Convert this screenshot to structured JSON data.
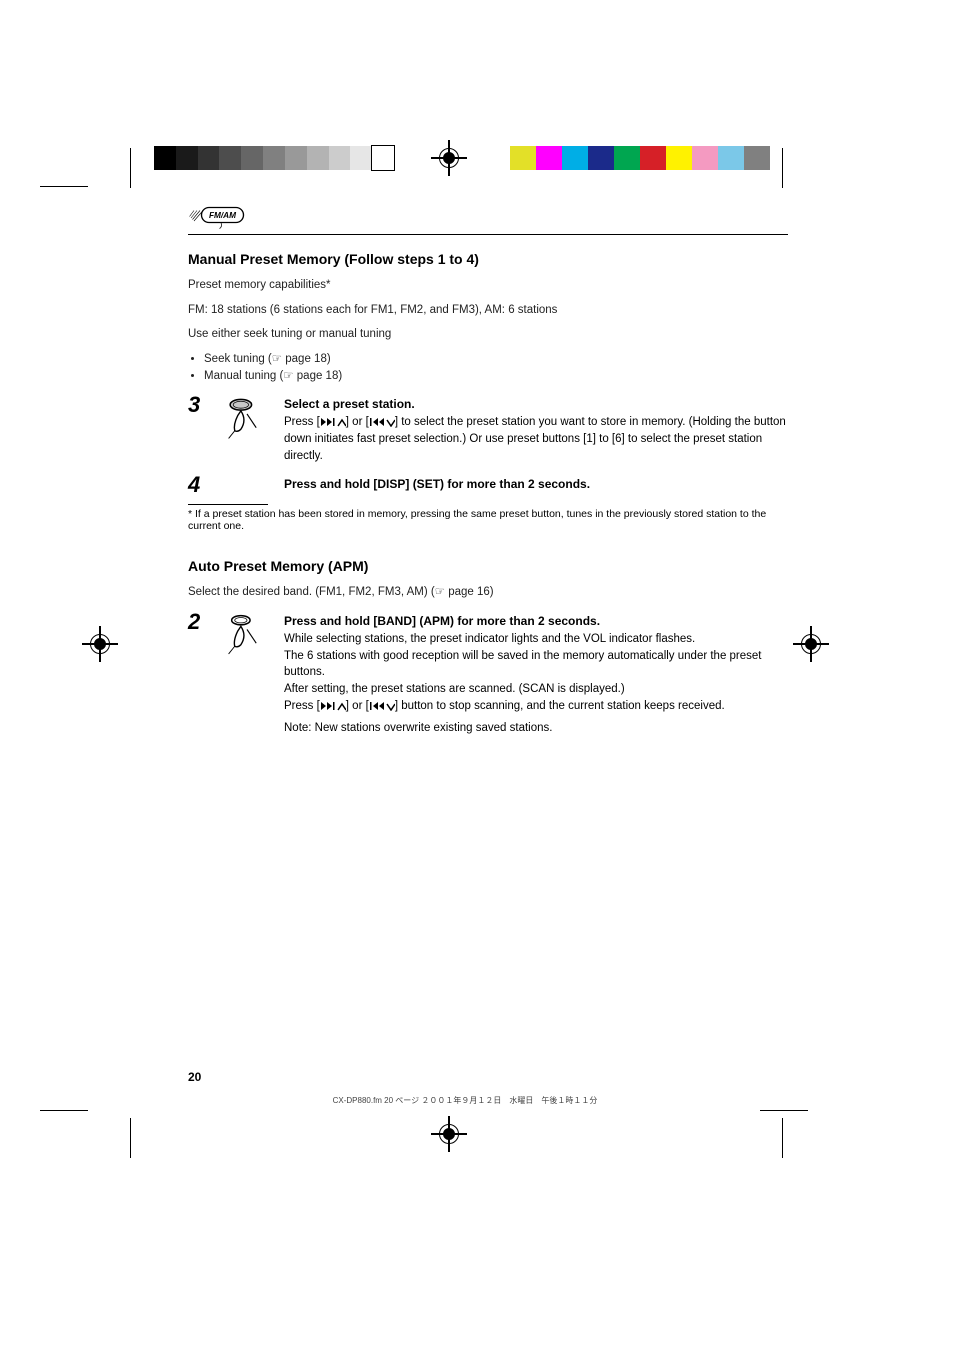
{
  "page_number": "20",
  "file_stamp": "CX-DP880.fm  20 ページ  ２００１年９月１２日　水曜日　午後１時１１分",
  "chapter_logo_label": "FM/AM",
  "gray_bar_colors": [
    "#000000",
    "#1a1a1a",
    "#333333",
    "#4d4d4d",
    "#666666",
    "#808080",
    "#999999",
    "#b3b3b3",
    "#cccccc",
    "#e6e6e6",
    "#ffffff"
  ],
  "color_bar_colors": [
    "#e3e028",
    "#ff00ff",
    "#00aee6",
    "#1b2a8a",
    "#00a650",
    "#d62027",
    "#fff200",
    "#f49ac1",
    "#7bc8e8",
    "#808080"
  ],
  "sections": [
    {
      "title": "Manual Preset Memory (Follow steps 1 to 4)",
      "intro": [
        "Preset memory capabilities*",
        "FM: 18 stations (6 stations each for FM1, FM2, and FM3), AM: 6 stations"
      ],
      "bullets_lead": "Use either seek tuning or manual tuning",
      "bullets": [
        "Seek tuning (☞ page 18)",
        "Manual tuning (☞ page 18)"
      ],
      "steps": [
        {
          "num": "3",
          "title": "Select a preset station.",
          "sub": "Press [▶▶|∧] or [|◀◀∨] to select the preset station you want to store in memory. (Holding the button down initiates fast preset selection.) Or use preset buttons [1] to [6] to select the preset station directly."
        },
        {
          "num": "4",
          "title": "Press and hold [DISP] (SET) for more than 2 seconds.",
          "sub": ""
        }
      ],
      "footnote": "* If a preset station has been stored in memory, pressing the same preset button, tunes in the previously stored station to the current one."
    },
    {
      "title": "Auto Preset Memory (APM)",
      "intro": [
        "Select the desired band. (FM1, FM2, FM3, AM) (☞ page 16)"
      ],
      "steps": [
        {
          "num": "2",
          "title": "Press and hold [BAND] (APM) for more than 2 seconds.",
          "sub": "While selecting stations, the preset indicator lights and the VOL indicator flashes.\nThe 6 stations with good reception will be saved in the memory automatically under the preset buttons.\nAfter setting, the preset stations are scanned. (SCAN is displayed.)\nPress [▶▶|∧] or [|◀◀∨] button to stop scanning, and the current station keeps received.",
          "note": "Note: New stations overwrite existing saved stations."
        }
      ]
    }
  ],
  "icons": {
    "press_button_label": "press-button-icon",
    "nav_up_label": "next-up-icon",
    "nav_down_label": "prev-down-icon"
  },
  "styling": {
    "page_bg": "#ffffff",
    "text_color": "#000000",
    "body_font_size_pt": 9,
    "title_font_size_pt": 11,
    "stepnum_font_size_pt": 17
  }
}
